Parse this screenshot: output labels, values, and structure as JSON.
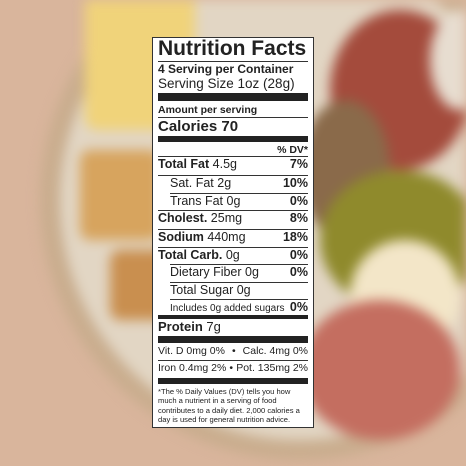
{
  "label": {
    "title": "Nutrition Facts",
    "servings": "4 Serving per Container",
    "serving_size": "Serving Size 1oz (28g)",
    "amount_per_serving": "Amount per serving",
    "calories_label": "Calories",
    "calories": "70",
    "dv_header": "% DV*",
    "rows": [
      {
        "label": "Total Fat",
        "amount": "4.5g",
        "dv": "7%"
      },
      {
        "label": "Sat. Fat",
        "amount": "2g",
        "dv": "10%"
      },
      {
        "label": "Trans Fat",
        "amount": "0g",
        "dv": "0%"
      },
      {
        "label": "Cholest.",
        "amount": "25mg",
        "dv": "8%"
      },
      {
        "label": "Sodium",
        "amount": "440mg",
        "dv": "18%"
      },
      {
        "label": "Total Carb.",
        "amount": "0g",
        "dv": "0%"
      },
      {
        "label": "Dietary Fiber",
        "amount": "0g",
        "dv": "0%"
      },
      {
        "label": "Total Sugar",
        "amount": "0g"
      },
      {
        "label": "Includes 0g added sugars",
        "dv": "0%"
      }
    ],
    "protein_label": "Protein",
    "protein": "7g",
    "vitamins": [
      "Vit. D 0mg 0%",
      "Calc. 4mg 0%",
      "Iron 0.4mg 2%",
      "Pot. 135mg 2%"
    ],
    "footnote": "*The % Daily Values (DV) tells you how much a nutrient in a serving of food contributes to a daily diet. 2,000 calories a day is used for general nutrition advice."
  }
}
